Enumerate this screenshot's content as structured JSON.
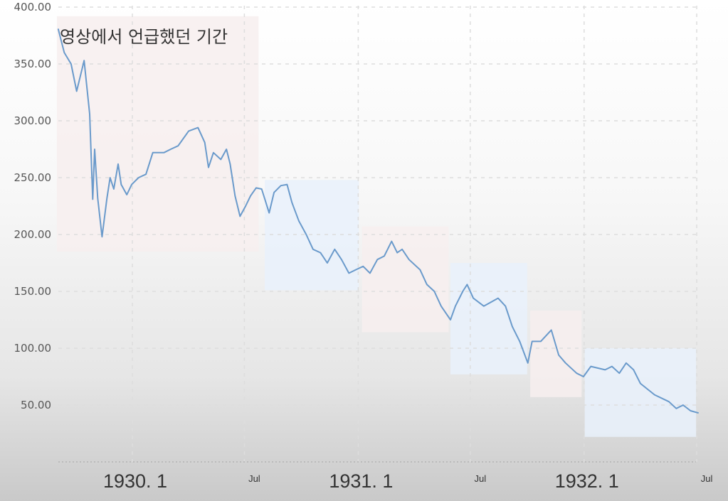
{
  "chart_data": {
    "type": "line",
    "title": "",
    "xlabel": "",
    "ylabel": "",
    "annotation": "영상에서 언급했던 기간",
    "ylim": [
      0,
      400
    ],
    "xlim": [
      "1929-08-28",
      "1932-07-08"
    ],
    "grid": true,
    "y_ticks": [
      {
        "value": 50,
        "label": "50.00"
      },
      {
        "value": 100,
        "label": "100.00"
      },
      {
        "value": 150,
        "label": "150.00"
      },
      {
        "value": 200,
        "label": "200.00"
      },
      {
        "value": 250,
        "label": "250.00"
      },
      {
        "value": 300,
        "label": "300.00"
      },
      {
        "value": 350,
        "label": "350.00"
      },
      {
        "value": 400,
        "label": "400.00"
      }
    ],
    "x_ticks": [
      {
        "date": "1930-01-01",
        "label": "1930. 1",
        "major": true
      },
      {
        "date": "1930-07-01",
        "label": "Jul",
        "major": false
      },
      {
        "date": "1931-01-01",
        "label": "1931. 1",
        "major": true
      },
      {
        "date": "1931-07-01",
        "label": "Jul",
        "major": false
      },
      {
        "date": "1932-01-01",
        "label": "1932. 1",
        "major": true
      },
      {
        "date": "1932-07-01",
        "label": "Jul",
        "major": false
      }
    ],
    "line_color": "#6a9acb",
    "highlight_colors": {
      "pink": "#f7eeee",
      "blue": "#e9f1fb"
    },
    "highlight_periods": [
      {
        "start": "1929-09-01",
        "end": "1930-07-24",
        "low": 185,
        "high": 392,
        "color": "pink"
      },
      {
        "start": "1930-08-03",
        "end": "1931-01-02",
        "low": 151,
        "high": 248,
        "color": "blue"
      },
      {
        "start": "1931-01-07",
        "end": "1931-05-27",
        "low": 114,
        "high": 207,
        "color": "pink"
      },
      {
        "start": "1931-05-30",
        "end": "1931-10-01",
        "low": 77,
        "high": 175,
        "color": "blue"
      },
      {
        "start": "1931-10-06",
        "end": "1931-12-28",
        "low": 57,
        "high": 133,
        "color": "pink"
      },
      {
        "start": "1932-01-02",
        "end": "1932-06-30",
        "low": 22,
        "high": 100,
        "color": "blue"
      }
    ],
    "series": [
      {
        "points": [
          [
            "1929-09-03",
            381
          ],
          [
            "1929-09-13",
            360
          ],
          [
            "1929-09-24",
            350
          ],
          [
            "1929-10-03",
            326
          ],
          [
            "1929-10-15",
            353
          ],
          [
            "1929-10-24",
            306
          ],
          [
            "1929-10-29",
            231
          ],
          [
            "1929-11-01",
            275
          ],
          [
            "1929-11-06",
            232
          ],
          [
            "1929-11-13",
            198
          ],
          [
            "1929-11-21",
            232
          ],
          [
            "1929-11-26",
            250
          ],
          [
            "1929-12-02",
            240
          ],
          [
            "1929-12-09",
            262
          ],
          [
            "1929-12-14",
            244
          ],
          [
            "1929-12-23",
            235
          ],
          [
            "1929-12-31",
            244
          ],
          [
            "1930-01-11",
            250
          ],
          [
            "1930-01-23",
            253
          ],
          [
            "1930-02-03",
            272
          ],
          [
            "1930-02-21",
            272
          ],
          [
            "1930-03-04",
            275
          ],
          [
            "1930-03-16",
            278
          ],
          [
            "1930-04-02",
            291
          ],
          [
            "1930-04-17",
            294
          ],
          [
            "1930-04-28",
            281
          ],
          [
            "1930-05-04",
            259
          ],
          [
            "1930-05-12",
            272
          ],
          [
            "1930-05-24",
            266
          ],
          [
            "1930-06-02",
            275
          ],
          [
            "1930-06-08",
            262
          ],
          [
            "1930-06-16",
            234
          ],
          [
            "1930-06-24",
            216
          ],
          [
            "1930-07-03",
            225
          ],
          [
            "1930-07-11",
            234
          ],
          [
            "1930-07-20",
            241
          ],
          [
            "1930-07-29",
            240
          ],
          [
            "1930-08-10",
            219
          ],
          [
            "1930-08-18",
            237
          ],
          [
            "1930-08-29",
            243
          ],
          [
            "1930-09-08",
            244
          ],
          [
            "1930-09-16",
            228
          ],
          [
            "1930-09-27",
            212
          ],
          [
            "1930-10-09",
            200
          ],
          [
            "1930-10-20",
            187
          ],
          [
            "1930-11-01",
            184
          ],
          [
            "1930-11-12",
            175
          ],
          [
            "1930-11-24",
            187
          ],
          [
            "1930-12-05",
            178
          ],
          [
            "1930-12-17",
            166
          ],
          [
            "1930-12-28",
            169
          ],
          [
            "1931-01-09",
            172
          ],
          [
            "1931-01-20",
            166
          ],
          [
            "1931-02-01",
            178
          ],
          [
            "1931-02-12",
            181
          ],
          [
            "1931-02-24",
            194
          ],
          [
            "1931-03-05",
            184
          ],
          [
            "1931-03-13",
            187
          ],
          [
            "1931-03-24",
            178
          ],
          [
            "1931-04-11",
            169
          ],
          [
            "1931-04-22",
            156
          ],
          [
            "1931-05-04",
            150
          ],
          [
            "1931-05-15",
            137
          ],
          [
            "1931-05-30",
            125
          ],
          [
            "1931-06-07",
            137
          ],
          [
            "1931-06-19",
            150
          ],
          [
            "1931-06-26",
            156
          ],
          [
            "1931-07-06",
            144
          ],
          [
            "1931-07-23",
            137
          ],
          [
            "1931-08-15",
            144
          ],
          [
            "1931-08-27",
            137
          ],
          [
            "1931-09-07",
            119
          ],
          [
            "1931-09-19",
            106
          ],
          [
            "1931-10-02",
            87
          ],
          [
            "1931-10-09",
            106
          ],
          [
            "1931-10-23",
            106
          ],
          [
            "1931-11-09",
            116
          ],
          [
            "1931-11-21",
            94
          ],
          [
            "1931-12-02",
            87
          ],
          [
            "1931-12-20",
            78
          ],
          [
            "1931-12-31",
            75
          ],
          [
            "1932-01-12",
            84
          ],
          [
            "1932-02-04",
            81
          ],
          [
            "1932-02-15",
            84
          ],
          [
            "1932-02-27",
            78
          ],
          [
            "1932-03-09",
            87
          ],
          [
            "1932-03-21",
            81
          ],
          [
            "1932-04-01",
            69
          ],
          [
            "1932-04-24",
            59
          ],
          [
            "1932-05-17",
            53
          ],
          [
            "1932-05-29",
            47
          ],
          [
            "1932-06-09",
            50
          ],
          [
            "1932-06-21",
            45
          ],
          [
            "1932-07-04",
            43
          ]
        ]
      }
    ]
  }
}
